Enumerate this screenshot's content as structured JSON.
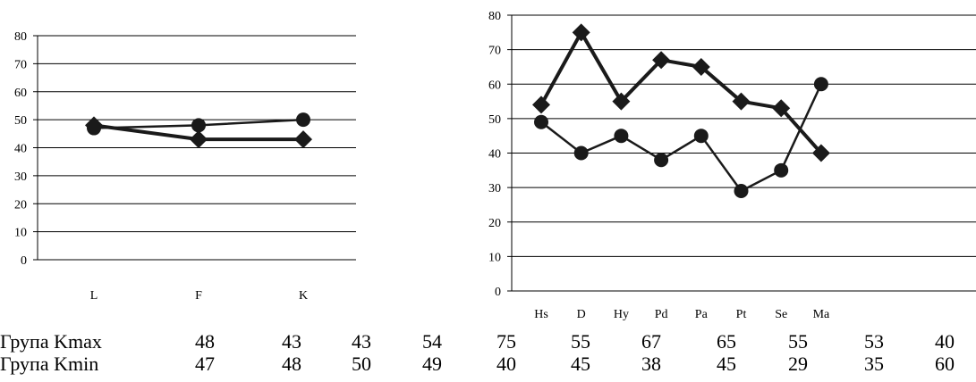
{
  "chart_data": [
    {
      "type": "line",
      "categories": [
        "L",
        "F",
        "K"
      ],
      "ylim": [
        0,
        80
      ],
      "yticks": [
        0,
        10,
        20,
        30,
        40,
        50,
        60,
        70,
        80
      ],
      "grid": true,
      "series": [
        {
          "name": "Група Kmax",
          "marker": "diamond",
          "values": [
            48,
            43,
            43
          ]
        },
        {
          "name": "Група Kmin",
          "marker": "circle",
          "values": [
            47,
            48,
            50
          ]
        }
      ]
    },
    {
      "type": "line",
      "categories": [
        "Hs",
        "D",
        "Hy",
        "Pd",
        "Pa",
        "Pt",
        "Se",
        "Ma"
      ],
      "ylim": [
        0,
        80
      ],
      "yticks": [
        0,
        10,
        20,
        30,
        40,
        50,
        60,
        70,
        80
      ],
      "grid": true,
      "series": [
        {
          "name": "Група Kmax",
          "marker": "diamond",
          "values": [
            54,
            75,
            55,
            67,
            65,
            55,
            53,
            40
          ]
        },
        {
          "name": "Група Kmin",
          "marker": "circle",
          "values": [
            49,
            40,
            45,
            38,
            45,
            29,
            35,
            60
          ]
        }
      ]
    }
  ],
  "table": {
    "rows": [
      {
        "label": "Група Kmax",
        "values": [
          "48",
          "43",
          "43",
          "54",
          "75",
          "55",
          "67",
          "65",
          "55",
          "53",
          "40"
        ]
      },
      {
        "label": "Група Kmin",
        "values": [
          "47",
          "48",
          "50",
          "49",
          "40",
          "45",
          "38",
          "45",
          "29",
          "35",
          "60"
        ]
      }
    ]
  },
  "colors": {
    "line": "#1a1a1a",
    "grid": "#000000"
  }
}
